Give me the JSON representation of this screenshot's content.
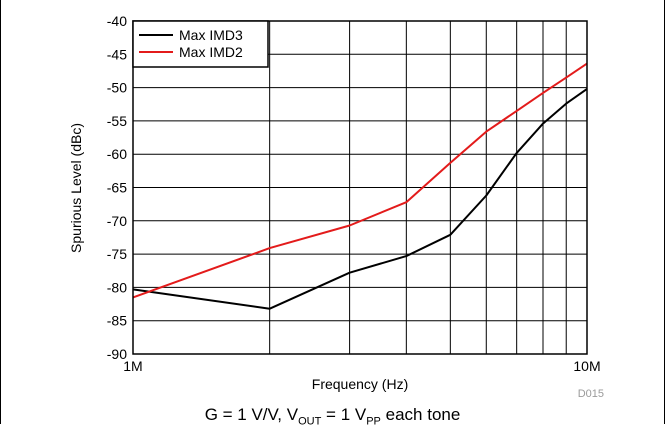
{
  "chart_data": {
    "type": "line",
    "xscale": "log",
    "xlim": [
      1000000,
      10000000
    ],
    "ylim": [
      -90,
      -40
    ],
    "xticks": [
      "1M",
      "10M"
    ],
    "yticks": [
      "-40",
      "-45",
      "-50",
      "-55",
      "-60",
      "-65",
      "-70",
      "-75",
      "-80",
      "-85",
      "-90"
    ],
    "xlabel": "Frequency (Hz)",
    "ylabel": "Spurious Level (dBc)",
    "grid": true,
    "legend": "top-left",
    "code": "D015",
    "series": [
      {
        "name": "Max IMD3",
        "color": "#000000",
        "x": [
          1000000,
          2000000,
          3000000,
          4000000,
          5000000,
          6000000,
          7000000,
          8000000,
          9000000,
          10000000
        ],
        "y": [
          -80.3,
          -83.2,
          -77.8,
          -75.3,
          -72.1,
          -66.2,
          -59.8,
          -55.4,
          -52.4,
          -50.2
        ]
      },
      {
        "name": "Max IMD2",
        "color": "#e31b1b",
        "x": [
          1000000,
          2000000,
          3000000,
          4000000,
          5000000,
          6000000,
          7000000,
          8000000,
          9000000,
          10000000
        ],
        "y": [
          -81.5,
          -74.1,
          -70.7,
          -67.2,
          -61.3,
          -56.6,
          -53.5,
          -50.8,
          -48.5,
          -46.4
        ]
      }
    ]
  },
  "caption": {
    "prefix": "G = 1 V/V, V",
    "sub1": "OUT",
    "middle": " = 1 V",
    "sub2": "PP",
    "suffix": " each tone"
  }
}
